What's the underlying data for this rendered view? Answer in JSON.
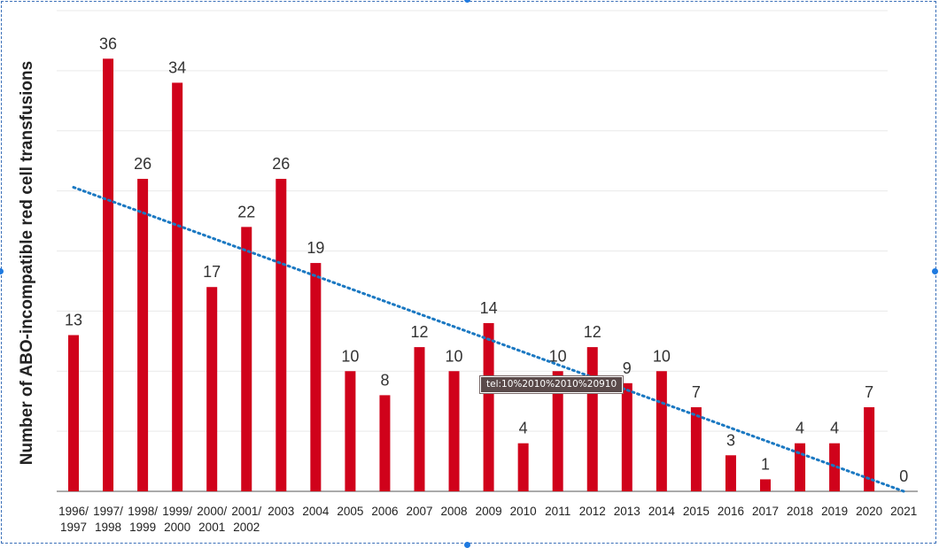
{
  "chart_data": {
    "type": "bar",
    "categories": [
      [
        "1996/",
        "1997"
      ],
      [
        "1997/",
        "1998"
      ],
      [
        "1998/",
        "1999"
      ],
      [
        "1999/",
        "2000"
      ],
      [
        "2000/",
        "2001"
      ],
      [
        "2001/",
        "2002"
      ],
      [
        "2003"
      ],
      [
        "2004"
      ],
      [
        "2005"
      ],
      [
        "2006"
      ],
      [
        "2007"
      ],
      [
        "2008"
      ],
      [
        "2009"
      ],
      [
        "2010"
      ],
      [
        "2011"
      ],
      [
        "2012"
      ],
      [
        "2013"
      ],
      [
        "2014"
      ],
      [
        "2015"
      ],
      [
        "2016"
      ],
      [
        "2017"
      ],
      [
        "2018"
      ],
      [
        "2019"
      ],
      [
        "2020"
      ],
      [
        "2021"
      ]
    ],
    "values": [
      13,
      36,
      26,
      34,
      17,
      22,
      26,
      19,
      10,
      8,
      12,
      10,
      14,
      4,
      10,
      12,
      9,
      10,
      7,
      3,
      1,
      4,
      4,
      7,
      0
    ],
    "ylabel": "Number of ABO-incompatible red cell transfusions",
    "ylim": [
      0,
      40
    ],
    "grid": true,
    "trendline": {
      "style": "dotted",
      "color": "#1a78c2",
      "start_value": 25.3,
      "end_value": 0
    },
    "bar_color": "#d0021b"
  },
  "tooltip": {
    "text": "tel:10%2010%2010%20910"
  }
}
